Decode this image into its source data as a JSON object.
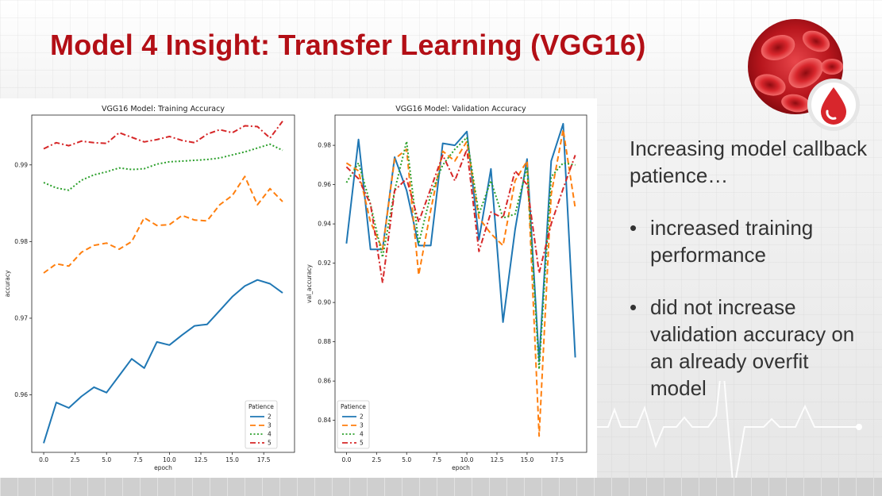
{
  "slide": {
    "title": "Model 4 Insight: Transfer Learning (VGG16)",
    "intro": "Increasing model callback patience…",
    "bullets": [
      "increased training performance",
      "did not increase validation accuracy on an already overfit model"
    ],
    "bullet_char": "•"
  },
  "icons": [
    "blood-cells-logo-icon",
    "blood-drop-icon",
    "heartbeat-line-icon"
  ],
  "colors": {
    "title": "#b30f16",
    "series": [
      "#1f77b4",
      "#ff7f0e",
      "#2ca02c",
      "#d62728"
    ]
  },
  "chart_data": [
    {
      "type": "line",
      "title": "VGG16 Model: Training Accuracy",
      "xlabel": "epoch",
      "ylabel": "accuracy",
      "xlim": [
        -0.95,
        19.95
      ],
      "ylim": [
        0.9525,
        0.9965
      ],
      "xticks": [
        "0.0",
        "2.5",
        "5.0",
        "7.5",
        "10.0",
        "12.5",
        "15.0",
        "17.5"
      ],
      "yticks": [
        "0.96",
        "0.97",
        "0.98",
        "0.99"
      ],
      "legend": {
        "title": "Patience",
        "placement": "lower right"
      },
      "x": [
        0,
        1,
        2,
        3,
        4,
        5,
        6,
        7,
        8,
        9,
        10,
        11,
        12,
        13,
        14,
        15,
        16,
        17,
        18,
        19
      ],
      "series": [
        {
          "name": "2",
          "style": "solid",
          "values": [
            0.9537,
            0.959,
            0.9583,
            0.9598,
            0.961,
            0.9603,
            0.9625,
            0.9647,
            0.9635,
            0.9669,
            0.9665,
            0.9678,
            0.969,
            0.9692,
            0.971,
            0.9728,
            0.9742,
            0.975,
            0.9745,
            0.9733
          ]
        },
        {
          "name": "3",
          "style": "dashed",
          "values": [
            0.9759,
            0.9771,
            0.9768,
            0.9786,
            0.9795,
            0.9798,
            0.979,
            0.98,
            0.9831,
            0.9821,
            0.9822,
            0.9834,
            0.9828,
            0.9827,
            0.9848,
            0.986,
            0.9885,
            0.9848,
            0.9869,
            0.9852
          ]
        },
        {
          "name": "4",
          "style": "dotted",
          "values": [
            0.9877,
            0.987,
            0.9867,
            0.988,
            0.9887,
            0.9891,
            0.9896,
            0.9894,
            0.9895,
            0.9901,
            0.9904,
            0.9905,
            0.9906,
            0.9907,
            0.9909,
            0.9913,
            0.9917,
            0.9922,
            0.9927,
            0.9919
          ]
        },
        {
          "name": "5",
          "style": "dashdot",
          "values": [
            0.9921,
            0.9929,
            0.9925,
            0.9931,
            0.9929,
            0.9928,
            0.9942,
            0.9936,
            0.993,
            0.9933,
            0.9937,
            0.9932,
            0.9929,
            0.994,
            0.9946,
            0.9942,
            0.9951,
            0.995,
            0.9935,
            0.9957
          ]
        }
      ]
    },
    {
      "type": "line",
      "title": "VGG16 Model: Validation Accuracy",
      "xlabel": "epoch",
      "ylabel": "val_accuracy",
      "xlim": [
        -0.95,
        19.95
      ],
      "ylim": [
        0.8237,
        0.9954
      ],
      "xticks": [
        "0.0",
        "2.5",
        "5.0",
        "7.5",
        "10.0",
        "12.5",
        "15.0",
        "17.5"
      ],
      "yticks": [
        "0.84",
        "0.86",
        "0.88",
        "0.90",
        "0.92",
        "0.94",
        "0.96",
        "0.98"
      ],
      "legend": {
        "title": "Patience",
        "placement": "lower left"
      },
      "x": [
        0,
        1,
        2,
        3,
        4,
        5,
        6,
        7,
        8,
        9,
        10,
        11,
        12,
        13,
        14,
        15,
        16,
        17,
        18,
        19
      ],
      "series": [
        {
          "name": "2",
          "style": "solid",
          "values": [
            0.93,
            0.983,
            0.927,
            0.927,
            0.974,
            0.957,
            0.929,
            0.929,
            0.981,
            0.98,
            0.987,
            0.932,
            0.968,
            0.89,
            0.937,
            0.973,
            0.87,
            0.972,
            0.991,
            0.872
          ]
        },
        {
          "name": "3",
          "style": "dashed",
          "values": [
            0.971,
            0.967,
            0.941,
            0.927,
            0.973,
            0.978,
            0.914,
            0.947,
            0.977,
            0.972,
            0.982,
            0.943,
            0.935,
            0.929,
            0.962,
            0.972,
            0.832,
            0.955,
            0.988,
            0.948
          ]
        },
        {
          "name": "4",
          "style": "dotted",
          "values": [
            0.961,
            0.971,
            0.95,
            0.923,
            0.957,
            0.982,
            0.93,
            0.955,
            0.97,
            0.978,
            0.984,
            0.945,
            0.962,
            0.943,
            0.945,
            0.969,
            0.866,
            0.964,
            0.971,
            0.97
          ]
        },
        {
          "name": "5",
          "style": "dashdot",
          "values": [
            0.969,
            0.963,
            0.95,
            0.91,
            0.957,
            0.963,
            0.941,
            0.958,
            0.975,
            0.962,
            0.978,
            0.926,
            0.946,
            0.943,
            0.967,
            0.96,
            0.915,
            0.94,
            0.958,
            0.975
          ]
        }
      ]
    }
  ]
}
